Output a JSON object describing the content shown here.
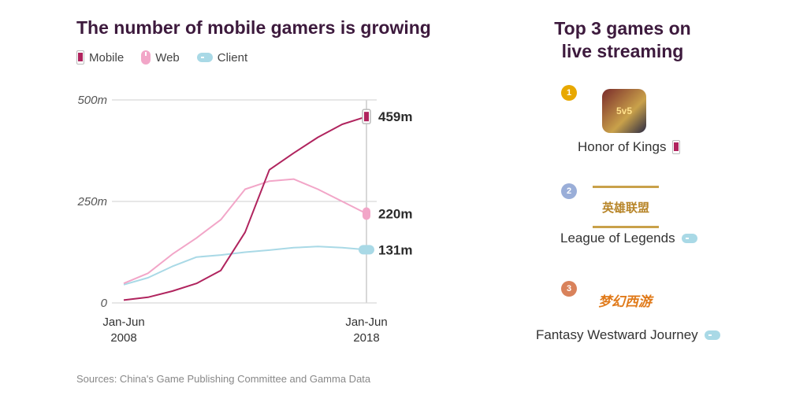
{
  "left": {
    "title": "The number of mobile gamers is growing",
    "legend": [
      {
        "label": "Mobile",
        "icon": "phone-icon",
        "color": "#b0245e"
      },
      {
        "label": "Web",
        "icon": "mouse-icon",
        "color": "#f2a6c8"
      },
      {
        "label": "Client",
        "icon": "gamepad-icon",
        "color": "#a9d9e6"
      }
    ],
    "source": "Sources: China's Game Publishing Committee and Gamma Data"
  },
  "chart_data": {
    "type": "line",
    "x": [
      2008,
      2009,
      2010,
      2011,
      2012,
      2013,
      2014,
      2015,
      2016,
      2017,
      2018
    ],
    "x_tick_labels": [
      {
        "x": 2008,
        "line1": "Jan-Jun",
        "line2": "2008"
      },
      {
        "x": 2018,
        "line1": "Jan-Jun",
        "line2": "2018"
      }
    ],
    "ylim": [
      0,
      500
    ],
    "y_ticks": [
      0,
      250,
      500
    ],
    "y_tick_labels": [
      "0",
      "250m",
      "500m"
    ],
    "grid": true,
    "series": [
      {
        "name": "Mobile",
        "color": "#b0245e",
        "values": [
          7,
          14,
          29,
          48,
          80,
          174,
          328,
          369,
          408,
          440,
          459
        ],
        "end_label": "459m"
      },
      {
        "name": "Web",
        "color": "#f2a6c8",
        "values": [
          48,
          73,
          120,
          160,
          205,
          280,
          300,
          305,
          280,
          250,
          220
        ],
        "end_label": "220m"
      },
      {
        "name": "Client",
        "color": "#a9d9e6",
        "values": [
          45,
          62,
          90,
          113,
          118,
          125,
          130,
          136,
          139,
          136,
          131
        ],
        "end_label": "131m"
      }
    ]
  },
  "right": {
    "title_line1": "Top 3 games on",
    "title_line2": "live streaming",
    "games": [
      {
        "rank": "1",
        "badge_color": "#e8a800",
        "name": "Honor of Kings",
        "platform": "phone-icon",
        "logo": "5v5"
      },
      {
        "rank": "2",
        "badge_color": "#9aaed8",
        "name": "League of Legends",
        "platform": "gamepad-icon",
        "logo": "英雄联盟"
      },
      {
        "rank": "3",
        "badge_color": "#d9825b",
        "name": "Fantasy Westward Journey",
        "platform": "gamepad-icon",
        "logo": "梦幻西游"
      }
    ]
  }
}
